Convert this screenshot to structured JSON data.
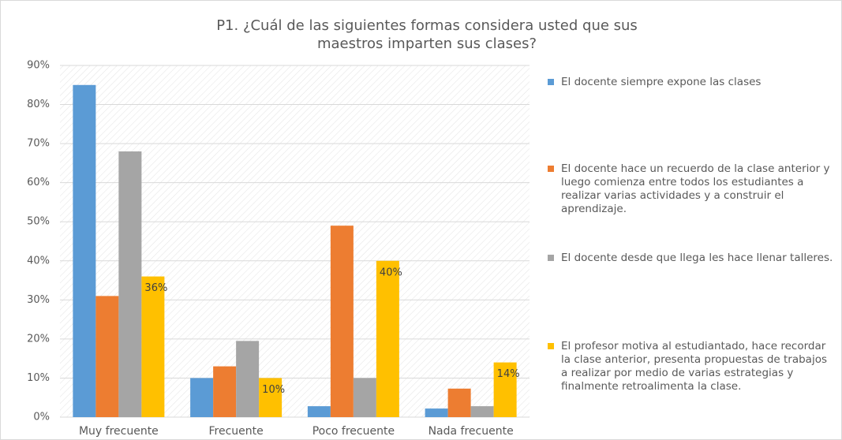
{
  "chart_data": {
    "type": "bar",
    "title": "P1. ¿Cuál de las siguientes formas considera usted que sus maestros imparten sus clases?",
    "categories": [
      "Muy frecuente",
      "Frecuente",
      "Poco frecuente",
      "Nada frecuente"
    ],
    "series": [
      {
        "name": "El docente siempre expone las clases",
        "color": "#5b9bd5",
        "values": [
          85,
          10,
          2.8,
          2.2
        ]
      },
      {
        "name": "El docente hace un recuerdo de la clase anterior y luego comienza entre todos los estudiantes a realizar varias actividades y a construir el aprendizaje.",
        "color": "#ed7d31",
        "values": [
          31,
          13,
          49,
          7.3
        ]
      },
      {
        "name": "El docente desde que llega les hace llenar talleres.",
        "color": "#a5a5a5",
        "values": [
          68,
          19.5,
          10,
          2.8
        ]
      },
      {
        "name": "El profesor motiva al estudiantado, hace recordar la clase anterior, presenta propuestas de trabajos a realizar por medio de varias estrategias y finalmente retroalimenta la clase.",
        "color": "#ffc000",
        "values": [
          36,
          10,
          40,
          14
        ],
        "value_labels": [
          "36%",
          "10%",
          "40%",
          "14%"
        ]
      }
    ],
    "ylim": [
      0,
      90
    ],
    "yticks": [
      {
        "value": 0,
        "label": "0%"
      },
      {
        "value": 10,
        "label": "10%"
      },
      {
        "value": 20,
        "label": "20%"
      },
      {
        "value": 30,
        "label": "30%"
      },
      {
        "value": 40,
        "label": "40%"
      },
      {
        "value": 50,
        "label": "50%"
      },
      {
        "value": 60,
        "label": "60%"
      },
      {
        "value": 70,
        "label": "70%"
      },
      {
        "value": 80,
        "label": "80%"
      },
      {
        "value": 90,
        "label": "90%"
      }
    ],
    "grid": true,
    "legend": "right"
  }
}
